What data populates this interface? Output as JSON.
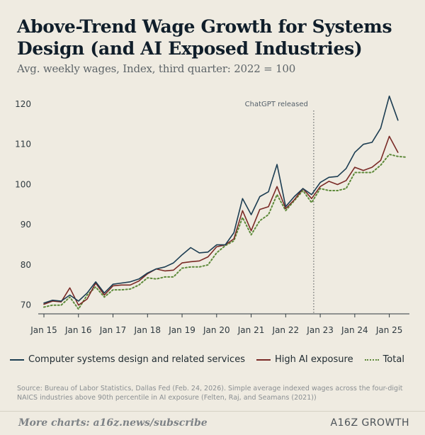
{
  "header": {
    "title": "Above-Trend Wage Growth for Systems Design (and AI Exposed Industries)",
    "subtitle": "Avg. weekly wages, Index, third quarter: 2022 = 100"
  },
  "chart_data": {
    "type": "line",
    "title": "Above-Trend Wage Growth for Systems Design (and AI Exposed Industries)",
    "subtitle": "Avg. weekly wages, Index, third quarter: 2022 = 100",
    "x": [
      "Q1 2015",
      "Q2 2015",
      "Q3 2015",
      "Q4 2015",
      "Q1 2016",
      "Q2 2016",
      "Q3 2016",
      "Q4 2016",
      "Q1 2017",
      "Q2 2017",
      "Q3 2017",
      "Q4 2017",
      "Q1 2018",
      "Q2 2018",
      "Q3 2018",
      "Q4 2018",
      "Q1 2019",
      "Q2 2019",
      "Q3 2019",
      "Q4 2019",
      "Q1 2020",
      "Q2 2020",
      "Q3 2020",
      "Q4 2020",
      "Q1 2021",
      "Q2 2021",
      "Q3 2021",
      "Q4 2021",
      "Q1 2022",
      "Q2 2022",
      "Q3 2022",
      "Q4 2022",
      "Q1 2023",
      "Q2 2023",
      "Q3 2023",
      "Q4 2023",
      "Q1 2024",
      "Q2 2024",
      "Q3 2024",
      "Q4 2024",
      "Q1 2025",
      "Q2 2025",
      "Q3 2025"
    ],
    "x_tick_labels": [
      "Jan 15",
      "Jan 16",
      "Jan 17",
      "Jan 18",
      "Jan 19",
      "Jan 20",
      "Jan 21",
      "Jan 22",
      "Jan 23",
      "Jan 24",
      "Jan 25"
    ],
    "y_ticks": [
      70,
      80,
      90,
      100,
      110,
      120
    ],
    "ylim": [
      68,
      123
    ],
    "xlabel": "",
    "ylabel": "",
    "grid": false,
    "legend_position": "bottom",
    "series": [
      {
        "name": "Computer systems design and related services",
        "color": "#1c3d52",
        "style": "solid",
        "values": [
          70.5,
          71.2,
          71.0,
          72.5,
          71.0,
          73.0,
          75.8,
          73.0,
          75.2,
          75.5,
          75.8,
          76.5,
          78.0,
          79.0,
          79.5,
          80.5,
          82.5,
          84.3,
          83.0,
          83.2,
          85.0,
          85.0,
          88.0,
          96.5,
          92.5,
          97.0,
          98.2,
          105.0,
          94.5,
          97.0,
          99.0,
          97.5,
          100.5,
          101.8,
          102.0,
          104.0,
          108.0,
          110.0,
          110.5,
          114.0,
          122.0,
          116.0,
          null
        ]
      },
      {
        "name": "High AI exposure",
        "color": "#7a2a26",
        "style": "solid",
        "values": [
          70.2,
          71.0,
          70.8,
          74.3,
          70.0,
          71.5,
          75.5,
          72.5,
          74.8,
          75.0,
          75.0,
          76.0,
          77.8,
          79.0,
          78.5,
          78.7,
          80.5,
          80.8,
          81.0,
          82.0,
          84.5,
          85.0,
          86.5,
          93.5,
          88.5,
          93.8,
          94.5,
          99.5,
          94.0,
          96.2,
          99.0,
          96.5,
          99.5,
          100.8,
          100.0,
          101.0,
          104.3,
          103.5,
          104.3,
          106.0,
          112.0,
          108.0,
          null
        ]
      },
      {
        "name": "Total",
        "color": "#5e8a3a",
        "style": "dotted",
        "values": [
          69.5,
          70.0,
          70.0,
          72.0,
          69.0,
          72.5,
          74.5,
          72.0,
          73.8,
          73.8,
          74.0,
          75.0,
          76.8,
          76.5,
          77.0,
          77.0,
          79.2,
          79.5,
          79.5,
          80.0,
          83.0,
          84.8,
          86.0,
          91.8,
          87.5,
          91.0,
          92.5,
          97.5,
          93.5,
          96.0,
          98.5,
          95.5,
          99.0,
          98.5,
          98.5,
          99.0,
          103.0,
          103.0,
          103.0,
          104.8,
          107.5,
          107.0,
          106.8
        ]
      }
    ],
    "annotations": [
      {
        "label": "ChatGPT released",
        "x": "Q4 2022",
        "style": "dotted vertical line"
      }
    ]
  },
  "footer": {
    "source": "Source: Bureau of Labor Statistics, Dallas Fed (Feb. 24, 2026). Simple average indexed wages across the four-digit NAICS industries above 90th percentile in AI exposure (Felten, Raj, and Seamans (2021))",
    "link": "More charts: a16z.news/subscribe",
    "brand": "A16Z GROWTH"
  }
}
